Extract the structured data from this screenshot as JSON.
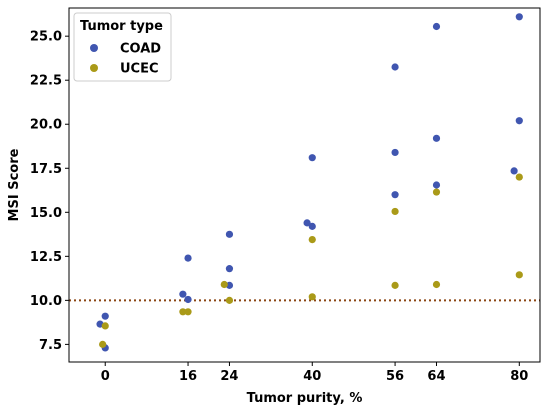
{
  "chart_data": {
    "type": "scatter",
    "xlabel": "Tumor purity, %",
    "ylabel": "MSI Score",
    "xlim": [
      -7,
      84
    ],
    "ylim": [
      6.5,
      26.6
    ],
    "xticks": [
      0,
      16,
      24,
      40,
      56,
      64,
      80
    ],
    "yticks": [
      7.5,
      10.0,
      12.5,
      15.0,
      17.5,
      20.0,
      22.5,
      25.0
    ],
    "ytick_labels": [
      "7.5",
      "10.0",
      "12.5",
      "15.0",
      "17.5",
      "20.0",
      "22.5",
      "25.0"
    ],
    "grid": false,
    "legend": {
      "title": "Tumor type",
      "placement": "top-left"
    },
    "reference_line": {
      "y": 10.0,
      "style": "dotted",
      "color": "#8B4513"
    },
    "series": [
      {
        "name": "COAD",
        "color": "#4056B0",
        "points": [
          {
            "x": -1,
            "y": 8.65
          },
          {
            "x": 0,
            "y": 9.1
          },
          {
            "x": 0,
            "y": 7.3
          },
          {
            "x": 15,
            "y": 10.35
          },
          {
            "x": 16,
            "y": 10.05
          },
          {
            "x": 16,
            "y": 12.4
          },
          {
            "x": 24,
            "y": 10.85
          },
          {
            "x": 24,
            "y": 11.8
          },
          {
            "x": 24,
            "y": 13.75
          },
          {
            "x": 39,
            "y": 14.4
          },
          {
            "x": 40,
            "y": 14.2
          },
          {
            "x": 40,
            "y": 18.1
          },
          {
            "x": 56,
            "y": 16.0
          },
          {
            "x": 56,
            "y": 18.4
          },
          {
            "x": 56,
            "y": 23.25
          },
          {
            "x": 64,
            "y": 16.55
          },
          {
            "x": 64,
            "y": 19.2
          },
          {
            "x": 64,
            "y": 25.55
          },
          {
            "x": 79,
            "y": 17.35
          },
          {
            "x": 80,
            "y": 20.2
          },
          {
            "x": 80,
            "y": 26.1
          }
        ]
      },
      {
        "name": "UCEC",
        "color": "#AA9A18",
        "points": [
          {
            "x": -0.5,
            "y": 7.5
          },
          {
            "x": 0,
            "y": 8.55
          },
          {
            "x": 15,
            "y": 9.35
          },
          {
            "x": 16,
            "y": 9.35
          },
          {
            "x": 23,
            "y": 10.9
          },
          {
            "x": 24,
            "y": 10.0
          },
          {
            "x": 40,
            "y": 10.2
          },
          {
            "x": 40,
            "y": 13.45
          },
          {
            "x": 56,
            "y": 10.85
          },
          {
            "x": 56,
            "y": 15.05
          },
          {
            "x": 64,
            "y": 10.9
          },
          {
            "x": 64,
            "y": 16.15
          },
          {
            "x": 80,
            "y": 11.45
          },
          {
            "x": 80,
            "y": 17.0
          }
        ]
      }
    ]
  }
}
